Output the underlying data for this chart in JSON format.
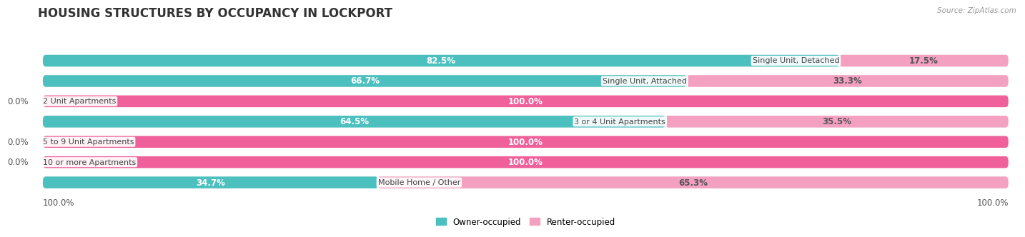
{
  "title": "HOUSING STRUCTURES BY OCCUPANCY IN LOCKPORT",
  "source": "Source: ZipAtlas.com",
  "categories": [
    "Single Unit, Detached",
    "Single Unit, Attached",
    "2 Unit Apartments",
    "3 or 4 Unit Apartments",
    "5 to 9 Unit Apartments",
    "10 or more Apartments",
    "Mobile Home / Other"
  ],
  "owner_pct": [
    82.5,
    66.7,
    0.0,
    64.5,
    0.0,
    0.0,
    34.7
  ],
  "renter_pct": [
    17.5,
    33.3,
    100.0,
    35.5,
    100.0,
    100.0,
    65.3
  ],
  "owner_color": "#4CBFBF",
  "renter_color_full": "#F0609A",
  "renter_color_partial": "#F4A0C0",
  "bar_bg_color": "#EBEBEB",
  "owner_label": "Owner-occupied",
  "renter_label": "Renter-occupied",
  "axis_label_left": "100.0%",
  "axis_label_right": "100.0%",
  "title_fontsize": 12,
  "label_fontsize": 8.5,
  "cat_fontsize": 8.0,
  "bar_height": 0.58,
  "bar_gap": 1.0,
  "figsize": [
    14.06,
    3.42
  ],
  "full_renter_rows": [
    2,
    4,
    5
  ],
  "rounding": 0.28
}
